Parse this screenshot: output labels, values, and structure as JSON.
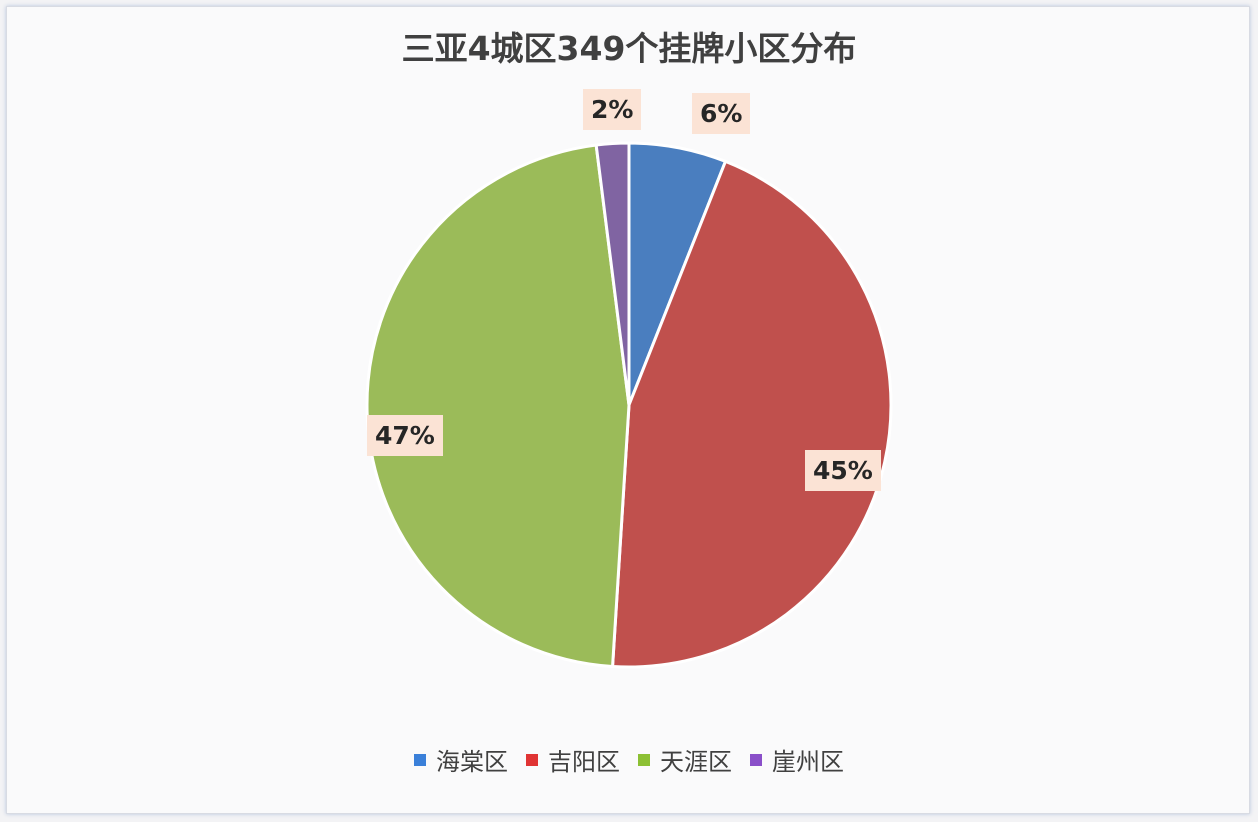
{
  "chart_data": {
    "type": "pie",
    "title": "三亚4城区349个挂牌小区分布",
    "categories": [
      "海棠区",
      "吉阳区",
      "天涯区",
      "崖州区"
    ],
    "values": [
      6,
      45,
      47,
      2
    ],
    "labels": [
      "6%",
      "45%",
      "47%",
      "2%"
    ],
    "colors": [
      "#4a7ebf",
      "#c0504d",
      "#9bbb59",
      "#8064a2"
    ],
    "legend_colors": [
      "#3a80d9",
      "#e03434",
      "#8cc034",
      "#8a4fc9"
    ],
    "start_angle": "top, clockwise",
    "legend": "bottom"
  }
}
